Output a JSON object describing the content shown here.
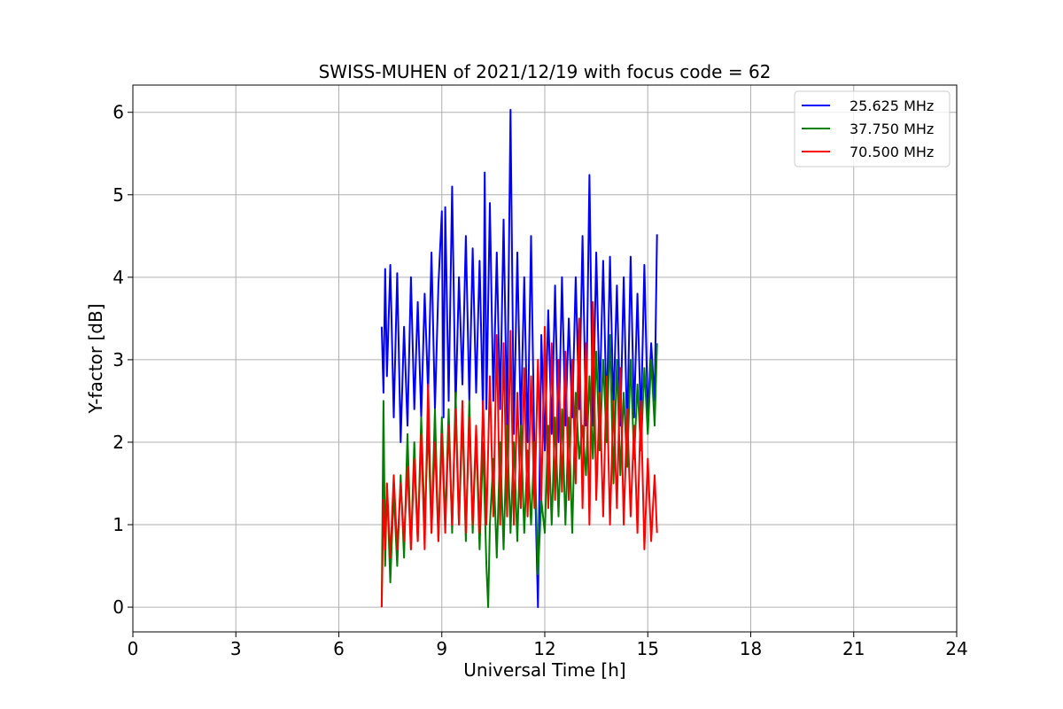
{
  "chart_data": {
    "type": "line",
    "title": "SWISS-MUHEN of 2021/12/19 with focus code = 62",
    "xlabel": "Universal Time [h]",
    "ylabel": "Y-factor [dB]",
    "xlim": [
      0,
      24
    ],
    "ylim": [
      -0.3,
      6.33
    ],
    "x_ticks": [
      0,
      3,
      6,
      9,
      12,
      15,
      18,
      21,
      24
    ],
    "y_ticks": [
      0,
      1,
      2,
      3,
      4,
      5,
      6
    ],
    "grid": true,
    "legend_position": "top-right",
    "series": [
      {
        "name": "25.625 MHz",
        "color": "#0000ff",
        "x": [
          7.25,
          7.3,
          7.35,
          7.4,
          7.5,
          7.6,
          7.7,
          7.8,
          7.9,
          8.0,
          8.1,
          8.2,
          8.3,
          8.4,
          8.5,
          8.6,
          8.7,
          8.8,
          8.9,
          9.0,
          9.05,
          9.1,
          9.2,
          9.3,
          9.4,
          9.5,
          9.6,
          9.7,
          9.8,
          9.9,
          10.0,
          10.1,
          10.2,
          10.25,
          10.3,
          10.4,
          10.5,
          10.6,
          10.7,
          10.8,
          10.9,
          11.0,
          11.1,
          11.2,
          11.3,
          11.4,
          11.5,
          11.6,
          11.7,
          11.8,
          11.9,
          12.0,
          12.1,
          12.2,
          12.3,
          12.4,
          12.5,
          12.6,
          12.7,
          12.8,
          12.9,
          13.0,
          13.1,
          13.2,
          13.3,
          13.4,
          13.5,
          13.6,
          13.7,
          13.8,
          13.9,
          14.0,
          14.1,
          14.2,
          14.3,
          14.4,
          14.5,
          14.6,
          14.7,
          14.8,
          14.9,
          15.0,
          15.1,
          15.2,
          15.27
        ],
        "y": [
          3.4,
          2.6,
          4.1,
          2.8,
          4.15,
          2.3,
          4.05,
          2.0,
          3.4,
          2.2,
          4.0,
          2.4,
          3.7,
          2.3,
          3.8,
          2.6,
          4.3,
          2.4,
          3.9,
          4.8,
          2.3,
          4.85,
          2.5,
          5.1,
          2.4,
          4.0,
          2.7,
          4.5,
          2.5,
          4.35,
          2.6,
          4.2,
          2.3,
          5.27,
          2.4,
          4.9,
          2.5,
          4.3,
          2.4,
          4.7,
          2.2,
          6.03,
          2.1,
          4.3,
          2.2,
          4.0,
          2.0,
          4.5,
          1.8,
          0.0,
          3.3,
          1.9,
          3.6,
          2.1,
          3.9,
          2.0,
          4.0,
          2.2,
          3.5,
          2.3,
          4.0,
          2.4,
          4.5,
          2.2,
          5.24,
          2.2,
          4.3,
          2.5,
          4.2,
          2.3,
          4.25,
          2.4,
          3.9,
          2.2,
          4.0,
          2.1,
          4.25,
          2.3,
          3.8,
          2.2,
          4.15,
          2.3,
          3.2,
          2.5,
          4.52
        ]
      },
      {
        "name": "37.750 MHz",
        "color": "#008000",
        "x": [
          7.25,
          7.3,
          7.35,
          7.4,
          7.5,
          7.6,
          7.7,
          7.8,
          7.9,
          8.0,
          8.1,
          8.2,
          8.3,
          8.4,
          8.5,
          8.6,
          8.7,
          8.8,
          8.9,
          9.0,
          9.1,
          9.2,
          9.3,
          9.4,
          9.5,
          9.6,
          9.7,
          9.8,
          9.9,
          10.0,
          10.1,
          10.2,
          10.3,
          10.35,
          10.4,
          10.5,
          10.6,
          10.7,
          10.8,
          10.9,
          11.0,
          11.1,
          11.2,
          11.3,
          11.4,
          11.5,
          11.6,
          11.7,
          11.8,
          11.9,
          12.0,
          12.1,
          12.2,
          12.3,
          12.4,
          12.5,
          12.6,
          12.7,
          12.8,
          12.9,
          13.0,
          13.1,
          13.2,
          13.3,
          13.4,
          13.5,
          13.6,
          13.7,
          13.8,
          13.9,
          14.0,
          14.1,
          14.2,
          14.3,
          14.4,
          14.5,
          14.6,
          14.7,
          14.8,
          14.9,
          15.0,
          15.1,
          15.2,
          15.27
        ],
        "y": [
          0.0,
          2.5,
          0.5,
          1.5,
          0.3,
          1.4,
          0.5,
          1.6,
          0.6,
          2.1,
          0.7,
          2.0,
          0.8,
          2.3,
          1.0,
          2.2,
          0.9,
          2.4,
          0.8,
          2.3,
          1.0,
          2.4,
          0.9,
          2.6,
          1.0,
          2.3,
          0.8,
          2.5,
          0.9,
          2.1,
          0.7,
          2.0,
          0.5,
          0.0,
          1.0,
          1.8,
          0.6,
          2.0,
          0.7,
          2.2,
          0.9,
          2.0,
          0.8,
          2.2,
          0.9,
          1.9,
          1.0,
          2.0,
          0.4,
          1.3,
          0.9,
          2.2,
          1.0,
          2.3,
          1.1,
          2.4,
          1.0,
          2.3,
          0.9,
          2.6,
          1.8,
          2.2,
          1.6,
          2.8,
          1.8,
          3.1,
          1.9,
          3.0,
          2.0,
          3.3,
          1.5,
          3.0,
          1.6,
          2.6,
          1.7,
          3.0,
          1.8,
          2.7,
          1.9,
          2.9,
          2.1,
          3.0,
          2.2,
          3.2
        ]
      },
      {
        "name": "70.500 MHz",
        "color": "#ff0000",
        "x": [
          7.25,
          7.3,
          7.35,
          7.4,
          7.5,
          7.6,
          7.7,
          7.8,
          7.9,
          8.0,
          8.1,
          8.2,
          8.3,
          8.4,
          8.5,
          8.6,
          8.7,
          8.8,
          8.9,
          9.0,
          9.1,
          9.2,
          9.3,
          9.4,
          9.5,
          9.6,
          9.7,
          9.8,
          9.9,
          10.0,
          10.1,
          10.2,
          10.3,
          10.4,
          10.5,
          10.6,
          10.7,
          10.8,
          10.9,
          11.0,
          11.1,
          11.2,
          11.3,
          11.4,
          11.5,
          11.6,
          11.7,
          11.8,
          11.9,
          12.0,
          12.1,
          12.2,
          12.3,
          12.4,
          12.5,
          12.6,
          12.7,
          12.8,
          12.9,
          13.0,
          13.1,
          13.2,
          13.3,
          13.4,
          13.5,
          13.6,
          13.7,
          13.8,
          13.9,
          14.0,
          14.1,
          14.2,
          14.3,
          14.4,
          14.5,
          14.6,
          14.7,
          14.8,
          14.9,
          15.0,
          15.1,
          15.2,
          15.27
        ],
        "y": [
          0.0,
          1.3,
          0.7,
          1.5,
          0.6,
          1.6,
          0.7,
          1.5,
          0.8,
          1.7,
          0.7,
          1.8,
          0.8,
          2.1,
          0.7,
          2.7,
          0.9,
          2.0,
          0.8,
          2.1,
          0.9,
          2.2,
          1.0,
          2.4,
          1.0,
          2.5,
          0.9,
          2.3,
          1.0,
          2.2,
          0.9,
          2.5,
          1.0,
          2.8,
          1.1,
          3.3,
          1.0,
          3.2,
          1.1,
          3.35,
          1.0,
          2.6,
          1.2,
          2.9,
          1.1,
          2.8,
          1.2,
          3.0,
          1.3,
          3.4,
          1.2,
          3.2,
          1.3,
          3.0,
          1.4,
          3.1,
          1.3,
          3.0,
          1.5,
          3.5,
          1.2,
          3.2,
          1.0,
          3.7,
          1.3,
          2.6,
          1.1,
          2.8,
          1.0,
          2.5,
          1.2,
          2.9,
          1.0,
          2.4,
          1.1,
          2.2,
          0.9,
          2.5,
          0.7,
          1.8,
          0.8,
          1.6,
          0.9
        ]
      }
    ]
  }
}
